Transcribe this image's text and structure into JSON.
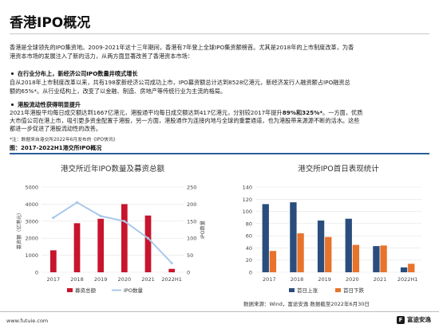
{
  "title": "香港IPO概况",
  "intro": [
    "香港是全球领先的IPO集资地。2009-2021年这十三年期间，香港有7年登上全球IPO集资额榜首。尤其是2018年的上市制度改革，为香",
    "港资本市场的发展注入了新的活力，从两方面显著改善了香港资本市场："
  ],
  "point1": {
    "heading": "在行业分布上，新经济公司IPO数量井喷式增长",
    "lines": [
      "自从2018年上市制度改革以来，共有198家新经济公司成功上市，IPO募资额总计达到8528亿港元，新经济发行人融资额占IPO融资总",
      "额的65%*。从行业结构上，改变了以金融、制造、房地产等传统行业为主流的格局。"
    ]
  },
  "point2": {
    "heading": "港股流动性获得明显提升",
    "line1_a": "2021年港股平均每日成交额达到1667亿港元，港股通平均每日成交额达到417亿港元，分别较2017年提升",
    "line1_b": "89%和325%*",
    "line1_c": "。一方面，优质",
    "lines": [
      "大市值公司在港上市，吸引更多资金配置于港股，另一方面，港股通作为连接内地与全球的重要通道，也为港股带来源源不断的活水。这些",
      "都进一步促进了港股流动性的改善。"
    ]
  },
  "note": "*注：数据来自港交所2022年6月发布的《IPO快讯》",
  "figure_caption": "图：2017-2022H1港交所IPO概况",
  "source": "数据来源：Wind，富途安逸  数据截至2022年6月30日",
  "url": "www.futuie.com",
  "logo": {
    "mark": "F",
    "text": "富途安逸"
  },
  "colors": {
    "bar": "#c8142c",
    "line": "#a9c8ea",
    "bar_first": "#2a4d7e",
    "bar_break": "#e8732a",
    "accent": "#2a5f97"
  },
  "chart_data": [
    {
      "type": "bar",
      "title": "港交所近年IPO数量及募资总额",
      "categories": [
        "2017",
        "2018",
        "2019",
        "2020",
        "2021",
        "2022H1"
      ],
      "series": [
        {
          "name": "募资总额",
          "kind": "bar",
          "axis": "left",
          "values": [
            1290,
            2880,
            3140,
            4000,
            3330,
            200
          ]
        },
        {
          "name": "IPO数量",
          "kind": "line",
          "axis": "right",
          "values": [
            160,
            205,
            165,
            150,
            100,
            27
          ]
        }
      ],
      "ylabel": "募资额（亿港元）",
      "y2label": "IPO数量",
      "ylim": [
        0,
        5000
      ],
      "y2lim": [
        0,
        250
      ],
      "yticks": [
        "0",
        "1000",
        "2000",
        "3000",
        "4000",
        "5000"
      ],
      "y2ticks": [
        "0",
        "50",
        "100",
        "150",
        "200",
        "250"
      ],
      "grid": true,
      "legend": "bottom"
    },
    {
      "type": "bar",
      "title": "港交所IPO首日表现统计",
      "categories": [
        "2017",
        "2018",
        "2019",
        "2020",
        "2021",
        "2022H1"
      ],
      "series": [
        {
          "name": "首日上涨",
          "values": [
            112,
            115,
            85,
            88,
            43,
            8
          ]
        },
        {
          "name": "首日下跌",
          "values": [
            35,
            64,
            58,
            45,
            44,
            14
          ]
        }
      ],
      "ylim": [
        0,
        140
      ],
      "yticks": [
        "0",
        "20",
        "40",
        "60",
        "80",
        "100",
        "120",
        "140"
      ],
      "grid": true,
      "legend": "bottom"
    }
  ]
}
